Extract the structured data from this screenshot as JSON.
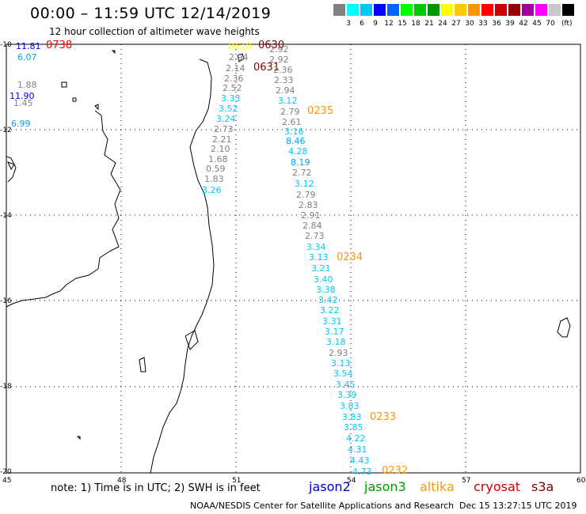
{
  "title": "00:00 – 11:59 UTC 12/14/2019",
  "subtitle": "12 hour collection of altimeter wave heights",
  "scale": {
    "colors": [
      "#808080",
      "#00ffff",
      "#00c8ff",
      "#0000ff",
      "#0064ff",
      "#00ff00",
      "#00c800",
      "#009600",
      "#ffff00",
      "#ffc800",
      "#ff9600",
      "#ff0000",
      "#c80000",
      "#960000",
      "#a000a0",
      "#ff00ff",
      "#c8c8c8",
      "#000000"
    ],
    "labels": [
      "3",
      "6",
      "9",
      "12",
      "15",
      "18",
      "21",
      "24",
      "27",
      "30",
      "33",
      "36",
      "39",
      "42",
      "45",
      "70"
    ],
    "unit": "(ft)"
  },
  "y_ticks": [
    "-10",
    "-12",
    "-14",
    "-16",
    "-18",
    "-20"
  ],
  "x_ticks": [
    "45",
    "48",
    "51",
    "54",
    "57",
    "60"
  ],
  "note": "note: 1) Time is in UTC; 2) SWH is in feet",
  "legend": [
    {
      "name": "jason2",
      "color": "#0000c8"
    },
    {
      "name": "jason3",
      "color": "#009600"
    },
    {
      "name": "altika",
      "color": "#ff9600"
    },
    {
      "name": "cryosat",
      "color": "#c80000"
    },
    {
      "name": "s3a",
      "color": "#800000"
    }
  ],
  "footer_left": "NOAA/NESDIS Center for Satellite Applications and Research",
  "footer_right": "Dec 15 13:27:15 UTC 2019",
  "time_labels": [
    {
      "text": "0738",
      "color": "#ff0000"
    },
    {
      "text": "0630",
      "color": "#800000"
    },
    {
      "text": "0631",
      "color": "#800000"
    },
    {
      "text": "0235",
      "color": "#ff9600"
    },
    {
      "text": "0234",
      "color": "#ff9600"
    },
    {
      "text": "0233",
      "color": "#ff9600"
    },
    {
      "text": "0232",
      "color": "#ff9600"
    }
  ],
  "wave_values": [
    {
      "text": "11.81",
      "color": "#0000ff"
    },
    {
      "text": "6.07",
      "color": "#00a0ff"
    },
    {
      "text": "1.88",
      "color": "#808080"
    },
    {
      "text": "11.90",
      "color": "#0000ff"
    },
    {
      "text": "1.45",
      "color": "#808080"
    },
    {
      "text": "6.99",
      "color": "#00a0ff"
    },
    {
      "text": "10.10",
      "color": "#ffff00"
    },
    {
      "text": "2.94",
      "color": "#808080"
    },
    {
      "text": "2.14",
      "color": "#808080"
    },
    {
      "text": "2.36",
      "color": "#808080"
    },
    {
      "text": "2.52",
      "color": "#808080"
    },
    {
      "text": "3.33",
      "color": "#00c8ff"
    },
    {
      "text": "3.52",
      "color": "#00c8ff"
    },
    {
      "text": "3.24",
      "color": "#00c8ff"
    },
    {
      "text": "2.73",
      "color": "#808080"
    },
    {
      "text": "2.21",
      "color": "#808080"
    },
    {
      "text": "2.10",
      "color": "#808080"
    },
    {
      "text": "1.68",
      "color": "#808080"
    },
    {
      "text": "0.59",
      "color": "#808080"
    },
    {
      "text": "1.83",
      "color": "#808080"
    },
    {
      "text": "3.26",
      "color": "#00c8ff"
    },
    {
      "text": "2.92",
      "color": "#808080"
    },
    {
      "text": "2.92",
      "color": "#808080"
    },
    {
      "text": "2.36",
      "color": "#808080"
    },
    {
      "text": "2.33",
      "color": "#808080"
    },
    {
      "text": "2.94",
      "color": "#808080"
    },
    {
      "text": "3.12",
      "color": "#00c8ff"
    },
    {
      "text": "2.79",
      "color": "#808080"
    },
    {
      "text": "2.61",
      "color": "#808080"
    },
    {
      "text": "3.16",
      "color": "#00c8ff"
    },
    {
      "text": "8.46",
      "color": "#00a0ff"
    },
    {
      "text": "4.28",
      "color": "#00c8ff"
    },
    {
      "text": "8.19",
      "color": "#00a0ff"
    },
    {
      "text": "2.72",
      "color": "#808080"
    },
    {
      "text": "3.12",
      "color": "#00c8ff"
    },
    {
      "text": "2.79",
      "color": "#808080"
    },
    {
      "text": "2.83",
      "color": "#808080"
    },
    {
      "text": "2.91",
      "color": "#808080"
    },
    {
      "text": "2.84",
      "color": "#808080"
    },
    {
      "text": "2.73",
      "color": "#808080"
    },
    {
      "text": "3.34",
      "color": "#00c8ff"
    },
    {
      "text": "3.13",
      "color": "#00c8ff"
    },
    {
      "text": "3.21",
      "color": "#00c8ff"
    },
    {
      "text": "3.40",
      "color": "#00c8ff"
    },
    {
      "text": "3.38",
      "color": "#00c8ff"
    },
    {
      "text": "3.42",
      "color": "#00c8ff"
    },
    {
      "text": "3.22",
      "color": "#00c8ff"
    },
    {
      "text": "3.31",
      "color": "#00c8ff"
    },
    {
      "text": "3.17",
      "color": "#00c8ff"
    },
    {
      "text": "3.18",
      "color": "#00c8ff"
    },
    {
      "text": "2.93",
      "color": "#808080"
    },
    {
      "text": "3.13",
      "color": "#00c8ff"
    },
    {
      "text": "3.54",
      "color": "#00c8ff"
    },
    {
      "text": "3.45",
      "color": "#00c8ff"
    },
    {
      "text": "3.39",
      "color": "#00c8ff"
    },
    {
      "text": "3.83",
      "color": "#00c8ff"
    },
    {
      "text": "3.83",
      "color": "#00c8ff"
    },
    {
      "text": "3.85",
      "color": "#00c8ff"
    },
    {
      "text": "4.22",
      "color": "#00c8ff"
    },
    {
      "text": "4.31",
      "color": "#00c8ff"
    },
    {
      "text": "4.43",
      "color": "#00c8ff"
    },
    {
      "text": "4.73",
      "color": "#00c8ff"
    }
  ]
}
